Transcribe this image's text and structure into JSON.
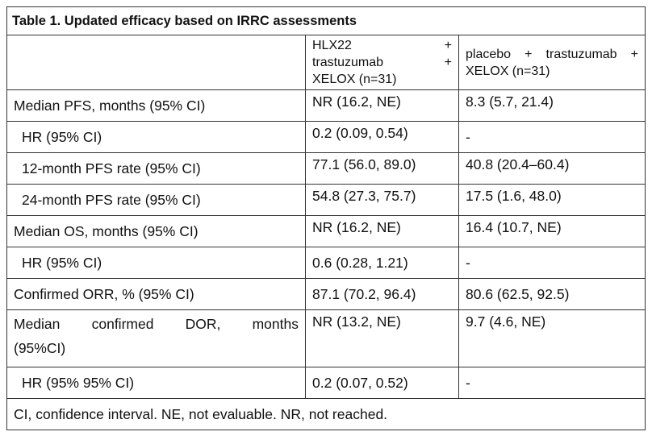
{
  "title": "Table 1. Updated efficacy based on IRRC assessments",
  "columns": {
    "col2_line1": "HLX22",
    "col2_plus1": "+",
    "col2_line2": "trastuzumab",
    "col2_plus2": "+",
    "col2_line3": "XELOX (n=31)",
    "col3": "placebo + trastuzumab + XELOX (n=31)"
  },
  "rows": [
    {
      "label": "Median PFS, months (95% CI)",
      "a": "NR (16.2, NE)",
      "b": "8.3 (5.7, 21.4)"
    },
    {
      "label": "HR (95% CI)",
      "a": "0.2 (0.09, 0.54)",
      "b": "-"
    },
    {
      "label": "12-month PFS rate (95% CI)",
      "a": "77.1 (56.0, 89.0)",
      "b": "40.8 (20.4–60.4)"
    },
    {
      "label": "24-month PFS rate (95% CI)",
      "a": "54.8 (27.3, 75.7)",
      "b": "17.5 (1.6, 48.0)"
    },
    {
      "label": "Median OS, months (95% CI)",
      "a": "NR (16.2, NE)",
      "b": "16.4 (10.7, NE)"
    },
    {
      "label": "HR (95% CI)",
      "a": "0.6 (0.28, 1.21)",
      "b": "-"
    },
    {
      "label": "Confirmed ORR, % (95% CI)",
      "a": "87.1 (70.2, 96.4)",
      "b": "80.6 (62.5, 92.5)"
    },
    {
      "label_line1": "Median confirmed DOR, months",
      "label_line2": "(95%CI)",
      "a": "NR (13.2, NE)",
      "b": "9.7 (4.6, NE)"
    },
    {
      "label": "HR (95% 95% CI)",
      "a": "0.2 (0.07, 0.52)",
      "b": "-"
    }
  ],
  "footnote": "CI, confidence interval. NE, not evaluable. NR, not reached."
}
